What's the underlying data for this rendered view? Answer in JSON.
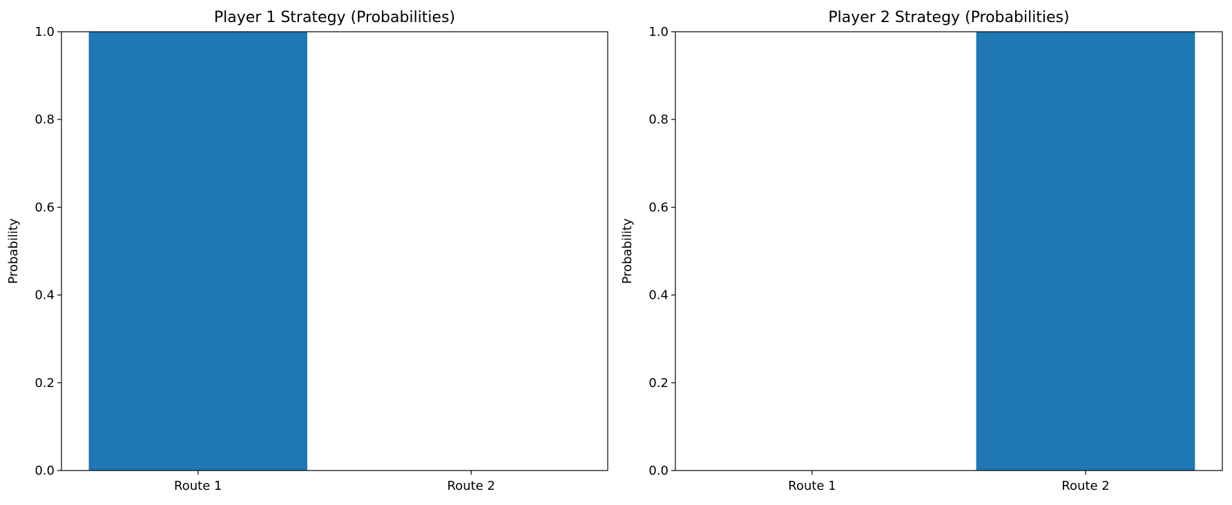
{
  "chart_data": [
    {
      "type": "bar",
      "title": "Player 1 Strategy (Probabilities)",
      "categories": [
        "Route 1",
        "Route 2"
      ],
      "values": [
        1.0,
        0.0
      ],
      "xlabel": "",
      "ylabel": "Probability",
      "ylim": [
        0,
        1.0
      ],
      "yticks": [
        "0.0",
        "0.2",
        "0.4",
        "0.6",
        "0.8",
        "1.0"
      ],
      "grid": false,
      "bar_color": "#1f77b4"
    },
    {
      "type": "bar",
      "title": "Player 2 Strategy (Probabilities)",
      "categories": [
        "Route 1",
        "Route 2"
      ],
      "values": [
        0.0,
        1.0
      ],
      "xlabel": "",
      "ylabel": "Probability",
      "ylim": [
        0,
        1.0
      ],
      "yticks": [
        "0.0",
        "0.2",
        "0.4",
        "0.6",
        "0.8",
        "1.0"
      ],
      "grid": false,
      "bar_color": "#1f77b4"
    }
  ]
}
